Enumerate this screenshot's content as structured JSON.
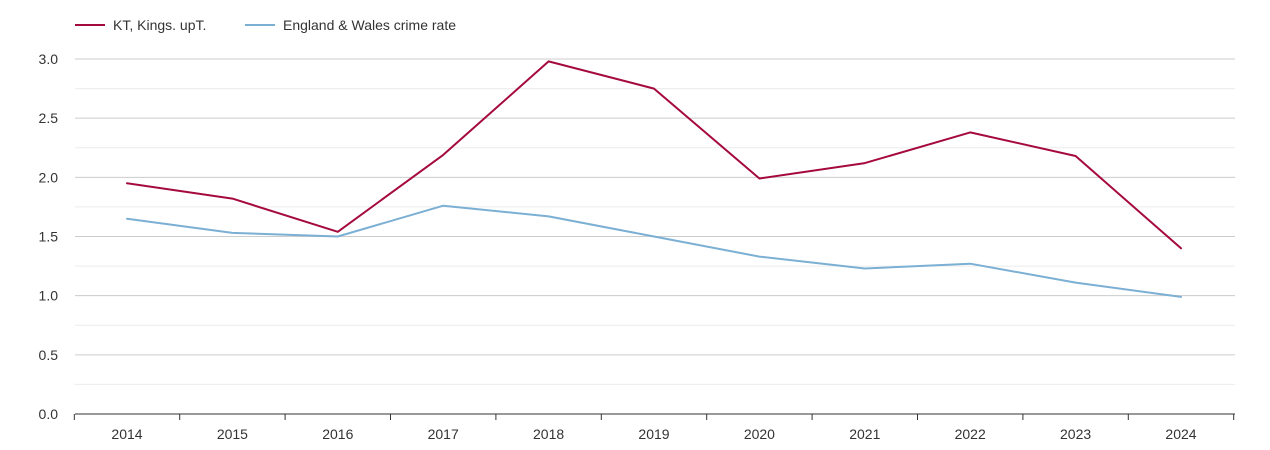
{
  "chart_data": {
    "type": "line",
    "title": "",
    "xlabel": "",
    "ylabel": "",
    "categories": [
      "2014",
      "2015",
      "2016",
      "2017",
      "2018",
      "2019",
      "2020",
      "2021",
      "2022",
      "2023",
      "2024"
    ],
    "ylim": [
      0,
      3.0
    ],
    "y_ticks": [
      "0.0",
      "0.5",
      "1.0",
      "1.5",
      "2.0",
      "2.5",
      "3.0"
    ],
    "grid": true,
    "legend_position": "top-left",
    "series": [
      {
        "name": "KT, Kings. upT.",
        "color": "#a50a3c",
        "values": [
          1.95,
          1.82,
          1.54,
          2.19,
          2.98,
          2.75,
          1.99,
          2.12,
          2.38,
          2.18,
          1.4
        ]
      },
      {
        "name": "England & Wales crime rate",
        "color": "#7bafd4",
        "values": [
          1.65,
          1.53,
          1.5,
          1.76,
          1.67,
          1.5,
          1.33,
          1.23,
          1.27,
          1.11,
          0.99
        ]
      }
    ]
  }
}
